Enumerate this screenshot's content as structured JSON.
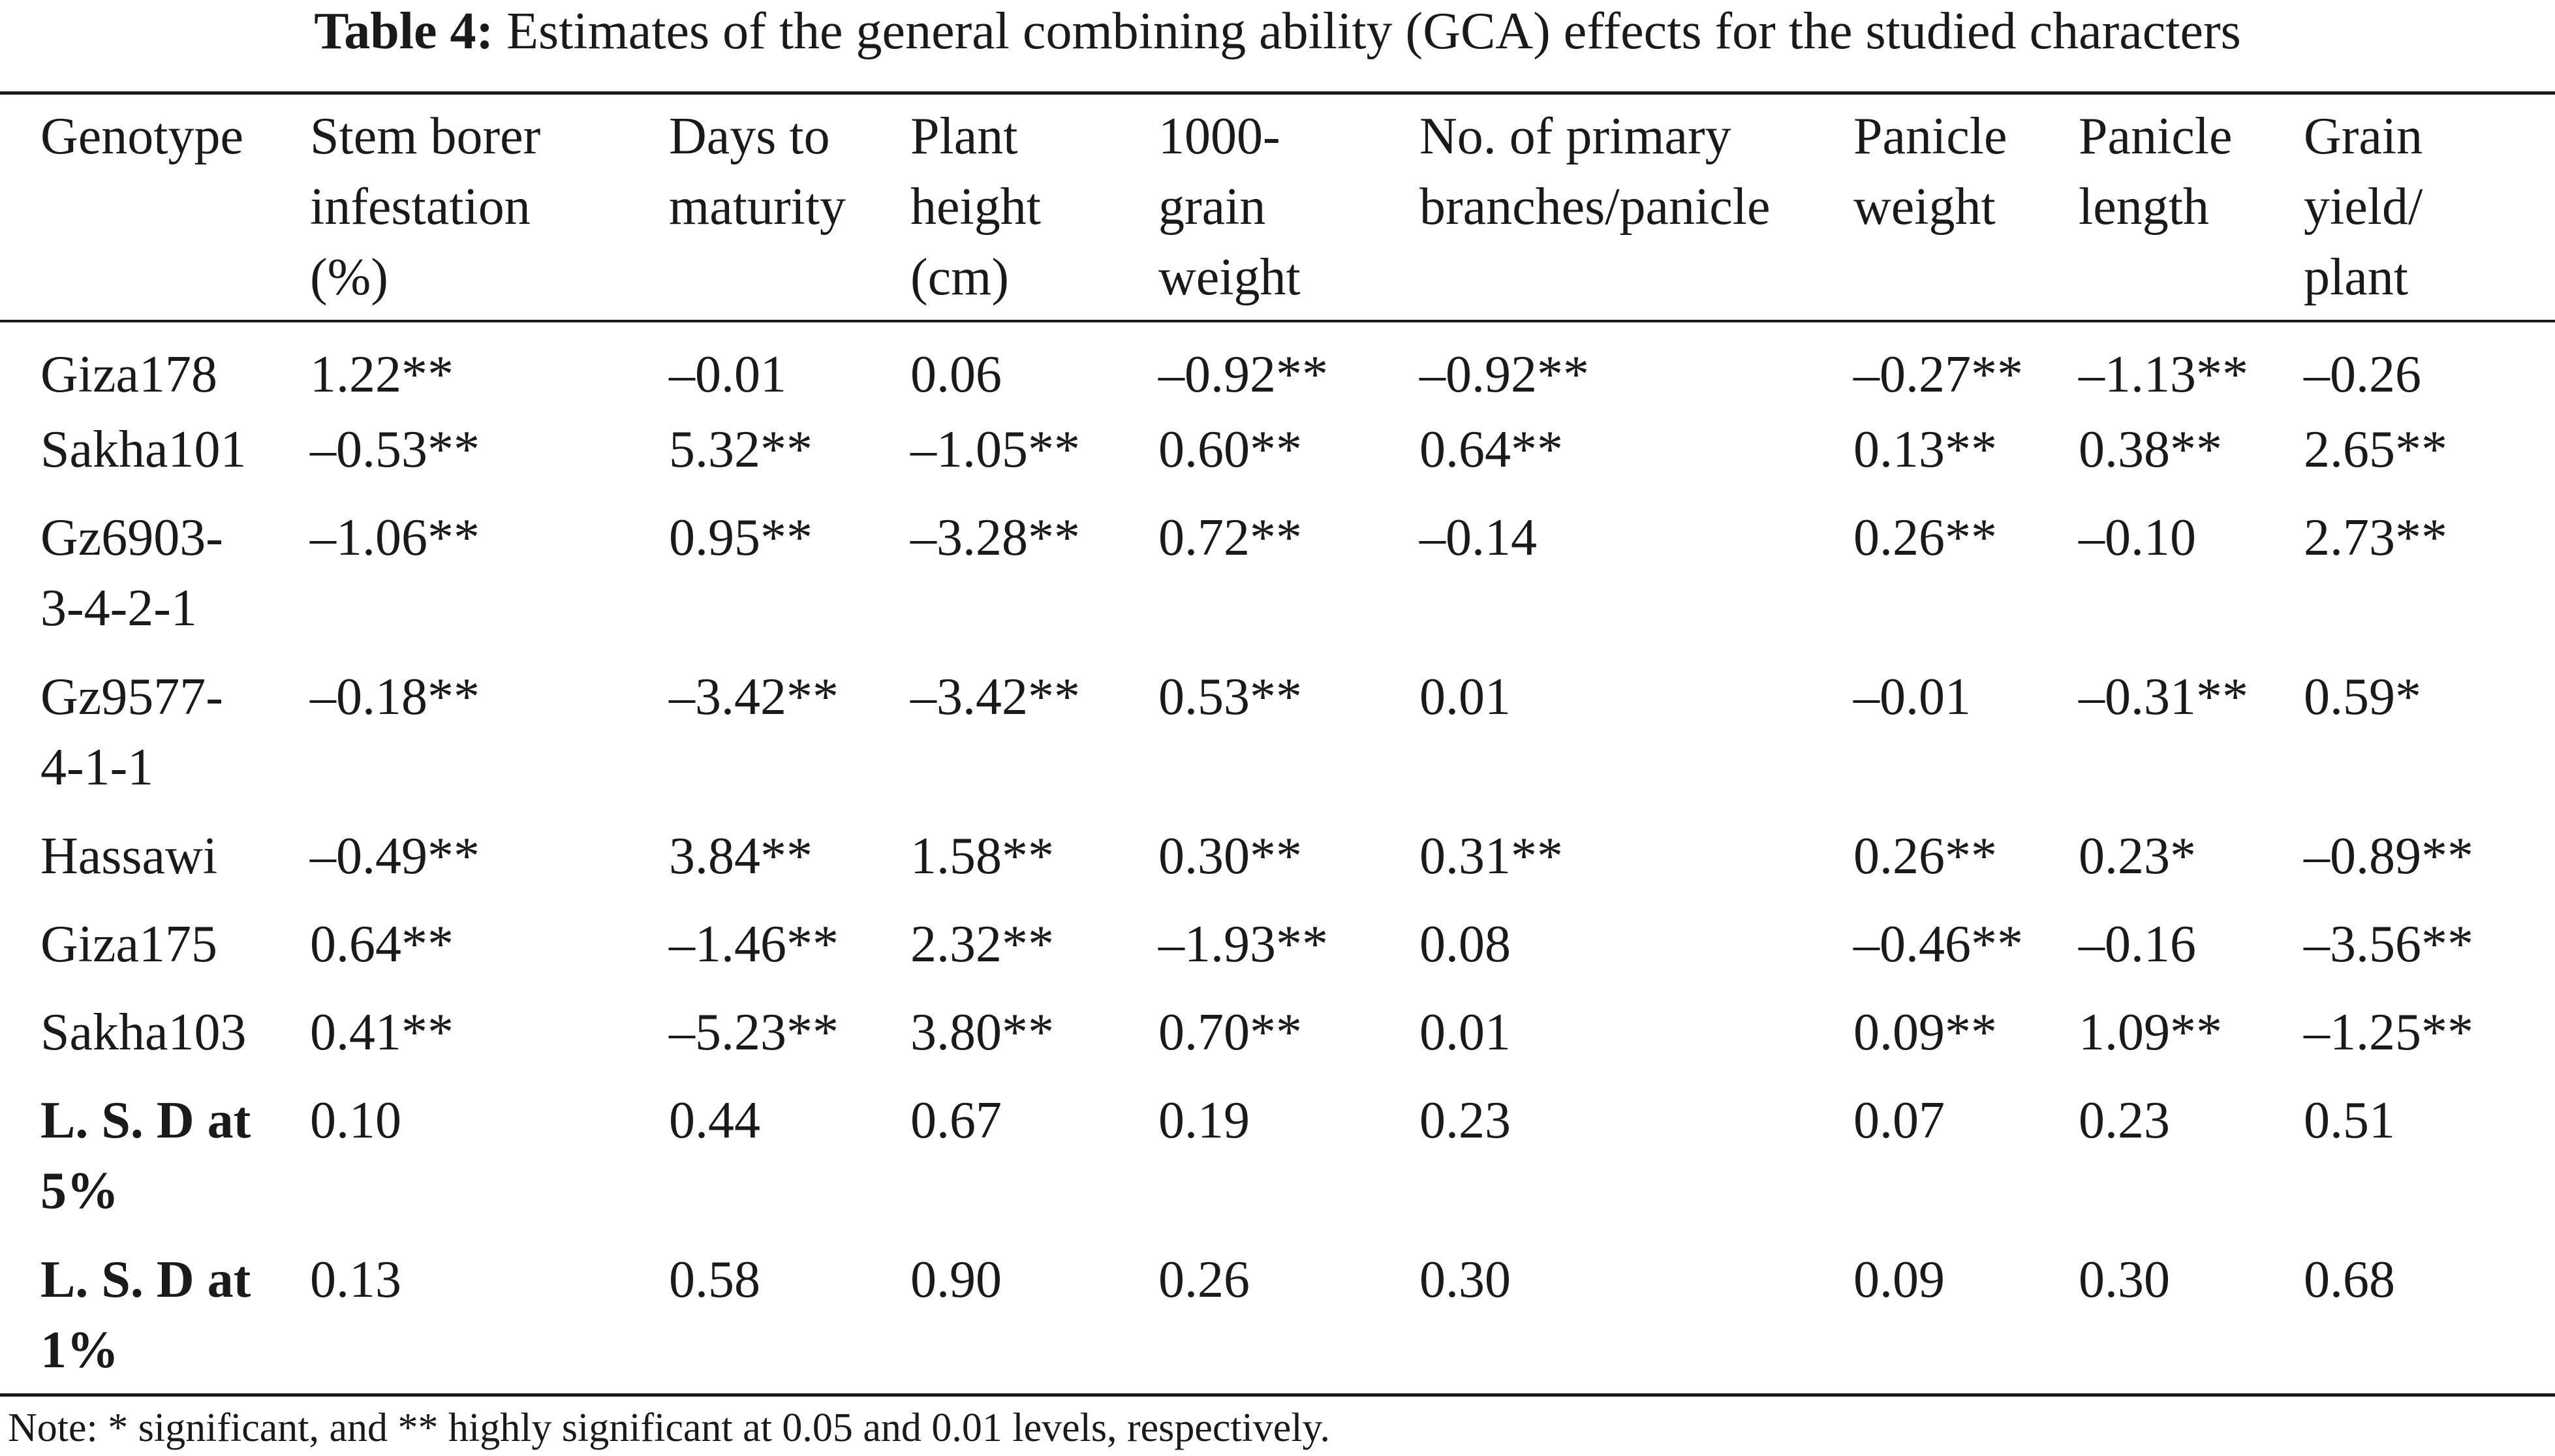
{
  "caption": {
    "label": "Table 4:",
    "text": "Estimates of the general combining ability (GCA) effects for the studied characters"
  },
  "table": {
    "headers": [
      [
        "Genotype"
      ],
      [
        "Stem borer",
        "infestation",
        "(%)"
      ],
      [
        "Days to",
        "maturity"
      ],
      [
        "Plant",
        "height",
        "(cm)"
      ],
      [
        "1000-",
        "grain",
        "weight"
      ],
      [
        "No. of primary",
        "branches/panicle"
      ],
      [
        "Panicle",
        "weight"
      ],
      [
        "Panicle",
        "length"
      ],
      [
        "Grain",
        "yield/",
        "plant"
      ]
    ],
    "rows": [
      {
        "genotype": [
          "Giza178"
        ],
        "values": [
          "1.22**",
          "–0.01",
          "0.06",
          "–0.92**",
          "–0.92**",
          "–0.27**",
          "–1.13**",
          "–0.26"
        ]
      },
      {
        "genotype": [
          "Sakha101"
        ],
        "values": [
          "–0.53**",
          "5.32**",
          "–1.05**",
          "0.60**",
          "0.64**",
          "0.13**",
          "0.38**",
          "2.65**"
        ]
      },
      {
        "genotype": [
          "Gz6903-",
          "3-4-2-1"
        ],
        "values": [
          "–1.06**",
          "0.95**",
          "–3.28**",
          "0.72**",
          "–0.14",
          "0.26**",
          "–0.10",
          "2.73**"
        ]
      },
      {
        "genotype": [
          "Gz9577-",
          "4-1-1"
        ],
        "values": [
          "–0.18**",
          "–3.42**",
          "–3.42**",
          "0.53**",
          "0.01",
          "–0.01",
          "–0.31**",
          "0.59*"
        ]
      },
      {
        "genotype": [
          "Hassawi"
        ],
        "values": [
          "–0.49**",
          "3.84**",
          "1.58**",
          "0.30**",
          "0.31**",
          "0.26**",
          "0.23*",
          "–0.89**"
        ]
      },
      {
        "genotype": [
          "Giza175"
        ],
        "values": [
          "0.64**",
          "–1.46**",
          "2.32**",
          "–1.93**",
          "0.08",
          "–0.46**",
          "–0.16",
          "–3.56**"
        ]
      },
      {
        "genotype": [
          "Sakha103"
        ],
        "values": [
          "0.41**",
          "–5.23**",
          "3.80**",
          "0.70**",
          "0.01",
          "0.09**",
          "1.09**",
          "–1.25**"
        ]
      },
      {
        "genotype": [
          "L. S. D at",
          "5%"
        ],
        "values": [
          "0.10",
          "0.44",
          "0.67",
          "0.19",
          "0.23",
          "0.07",
          "0.23",
          "0.51"
        ]
      },
      {
        "genotype": [
          "L. S. D at",
          "1%"
        ],
        "values": [
          "0.13",
          "0.58",
          "0.90",
          "0.26",
          "0.30",
          "0.09",
          "0.30",
          "0.68"
        ]
      }
    ]
  },
  "note": "Note: * significant, and ** highly significant at 0.05 and 0.01 levels, respectively."
}
